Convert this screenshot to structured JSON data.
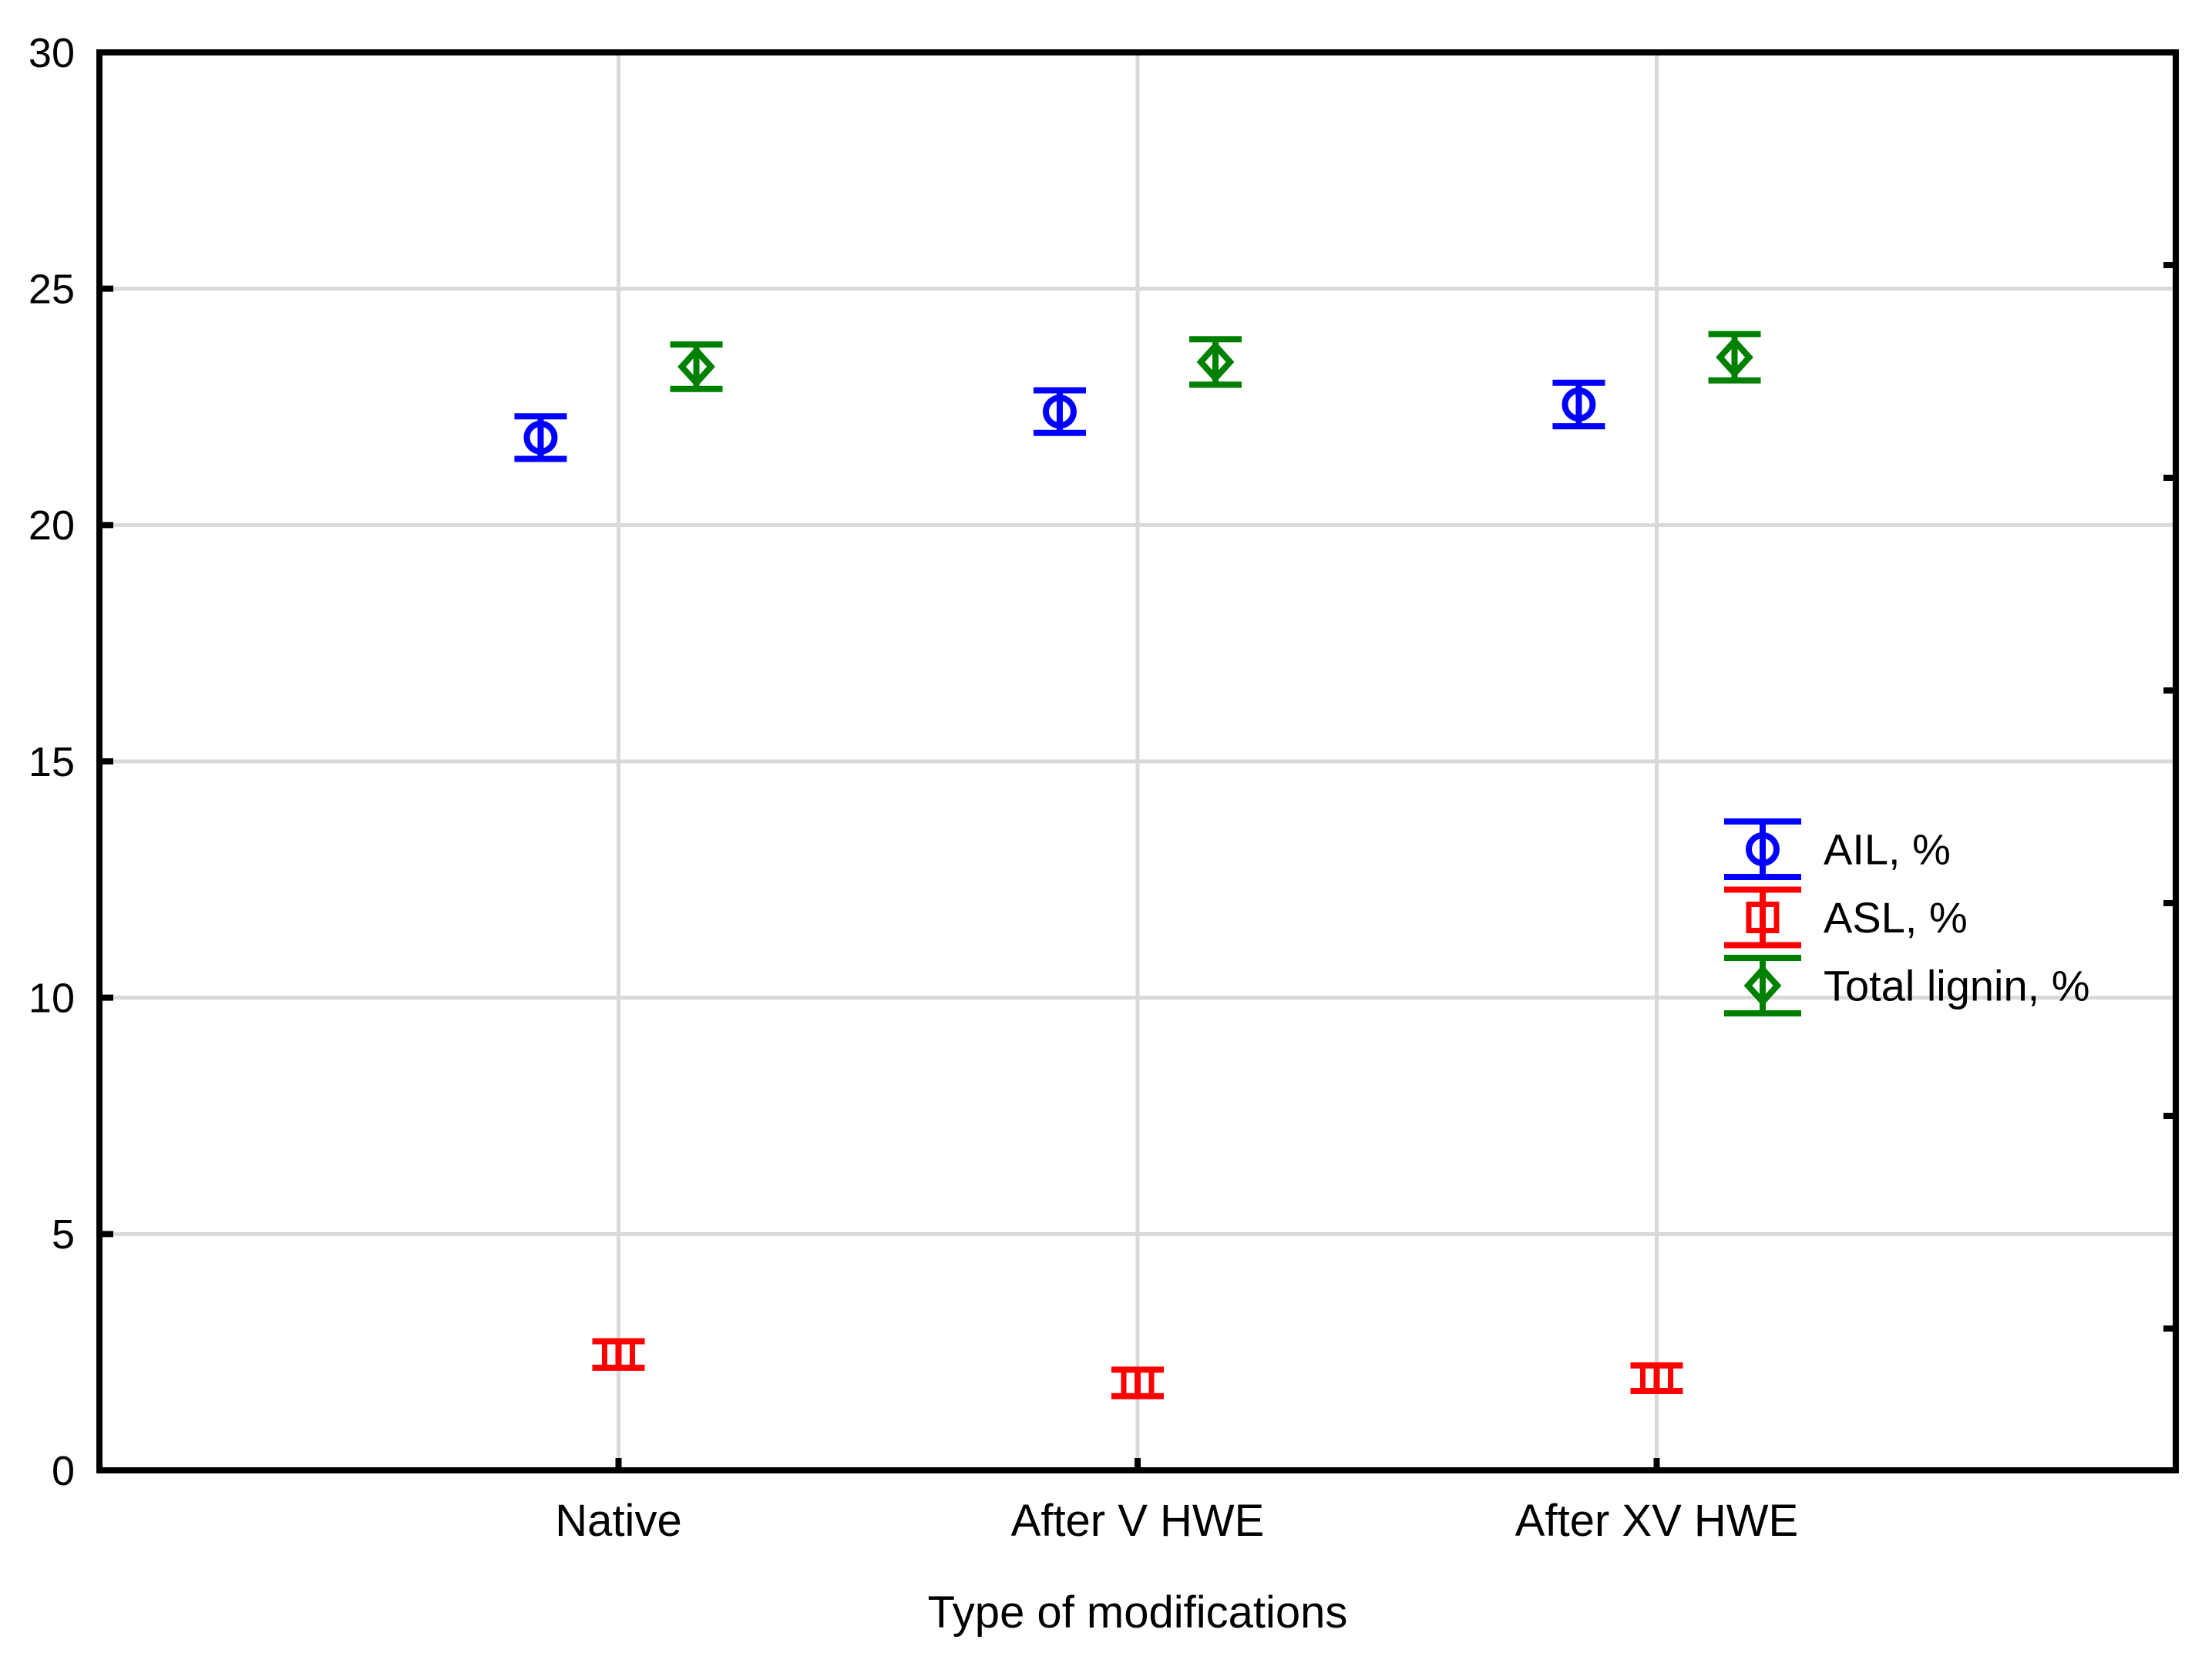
{
  "chart_data": {
    "type": "scatter",
    "title": "",
    "xlabel": "Type of modifications",
    "ylabel": "",
    "categories": [
      "Native",
      "After V HWE",
      "After XV HWE"
    ],
    "series": [
      {
        "name": "AIL, %",
        "marker": "circle",
        "color": "#0000ff",
        "offset": -0.15,
        "values": [
          21.85,
          22.4,
          22.55
        ],
        "errors": [
          0.45,
          0.45,
          0.46
        ]
      },
      {
        "name": "ASL, %",
        "marker": "square",
        "color": "#ff0000",
        "offset": 0,
        "values": [
          2.45,
          1.85,
          1.95
        ],
        "errors": [
          0.28,
          0.28,
          0.27
        ]
      },
      {
        "name": "Total lignin, %",
        "marker": "diamond",
        "color": "#008000",
        "offset": 0.15,
        "values": [
          23.35,
          23.45,
          23.55
        ],
        "errors": [
          0.47,
          0.48,
          0.49
        ]
      }
    ],
    "ylim": [
      0,
      30
    ],
    "yticks": [
      0,
      5,
      10,
      15,
      20,
      25,
      30
    ],
    "grid_y": [
      5,
      10,
      15,
      20,
      25
    ],
    "right_ticks": [
      25.5,
      21,
      16.5,
      12,
      7.5,
      3
    ],
    "grid": true,
    "error_bars": true,
    "legend_position": "middle-right"
  },
  "colors": {
    "background": "#ffffff",
    "axis": "#000000",
    "gridline": "#d9d9d9",
    "ail": "#0000ff",
    "asl": "#ff0000",
    "total_lignin": "#008000"
  }
}
